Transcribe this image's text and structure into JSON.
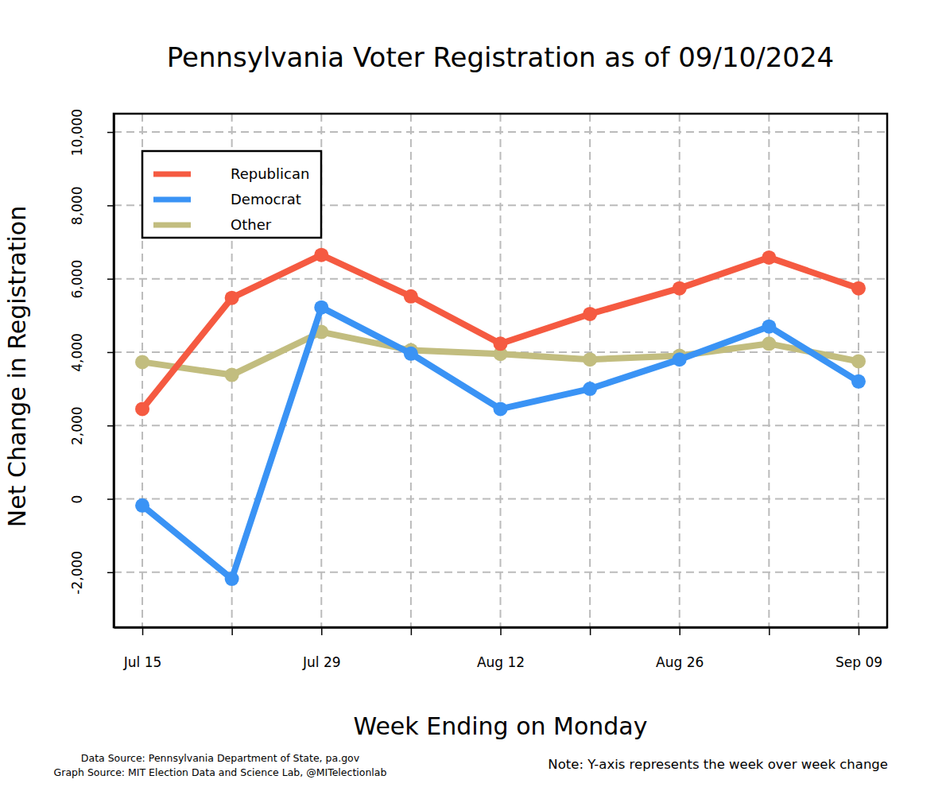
{
  "chart_data": {
    "type": "line",
    "title": "Pennsylvania Voter Registration as of 09/10/2024",
    "x_label": "Week Ending on Monday",
    "y_label": "Net Change in Registration",
    "categories": [
      "Jul 15",
      null,
      "Jul 29",
      null,
      "Aug 12",
      null,
      "Aug 26",
      null,
      "Sep 09"
    ],
    "series": [
      {
        "name": "Republican",
        "color": "#f55a41",
        "values": [
          2450,
          5480,
          6650,
          5520,
          4230,
          5040,
          5740,
          6580,
          5740
        ]
      },
      {
        "name": "Democrat",
        "color": "#3a93f5",
        "values": [
          -180,
          -2180,
          5220,
          3960,
          2450,
          3000,
          3800,
          4700,
          3200
        ]
      },
      {
        "name": "Other",
        "color": "#c2bd7f",
        "values": [
          3730,
          3380,
          4550,
          4050,
          3950,
          3800,
          3900,
          4230,
          3750
        ]
      }
    ],
    "ylim": [
      -3500,
      10500
    ],
    "yticks": [
      {
        "value": -2000,
        "label": "-2,000"
      },
      0,
      {
        "value": 2000,
        "label": "2,000"
      },
      {
        "value": 4000,
        "label": "4,000"
      },
      {
        "value": 6000,
        "label": "6,000"
      },
      {
        "value": 8000,
        "label": "8,000"
      },
      {
        "value": 10000,
        "label": "10,000"
      }
    ],
    "grid": true,
    "legend": "top-left",
    "marker": "circle",
    "line_style": "solid",
    "source": [
      "Data Source: Pennsylvania Department of State, pa.gov",
      "Graph Source: MIT Election Data and Science Lab, @MITelectionlab"
    ],
    "note": "Note: Y-axis represents the week over week change"
  }
}
